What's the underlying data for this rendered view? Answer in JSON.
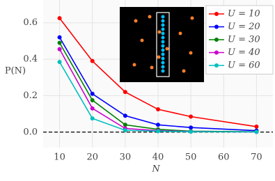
{
  "chart_data": {
    "type": "line",
    "x_label": "N",
    "y_label": "P(N)",
    "x": [
      10,
      20,
      30,
      40,
      50,
      70
    ],
    "series": [
      {
        "name": "U = 10",
        "color": "#ff0000",
        "values": [
          0.625,
          0.39,
          0.22,
          0.125,
          0.085,
          0.03
        ]
      },
      {
        "name": "U = 20",
        "color": "#0000ff",
        "values": [
          0.52,
          0.21,
          0.09,
          0.04,
          0.025,
          0.008
        ]
      },
      {
        "name": "U = 30",
        "color": "#008000",
        "values": [
          0.49,
          0.175,
          0.04,
          0.015,
          0.005,
          0.002
        ]
      },
      {
        "name": "U = 40",
        "color": "#cc00cc",
        "values": [
          0.455,
          0.13,
          0.02,
          0.008,
          0.003,
          0.001
        ]
      },
      {
        "name": "U = 60",
        "color": "#00bfbf",
        "values": [
          0.385,
          0.075,
          0.01,
          0.005,
          0.002,
          0.001
        ]
      }
    ],
    "xlim": [
      5,
      75
    ],
    "xticks": [
      10,
      20,
      30,
      40,
      50,
      60,
      70
    ],
    "ylim": [
      -0.085,
      0.725
    ],
    "yticks": [
      {
        "value": 0,
        "label": "0.0"
      },
      0.2,
      0.4,
      0.6
    ],
    "reference_line": 0,
    "grid": true,
    "legend": "upper right"
  }
}
